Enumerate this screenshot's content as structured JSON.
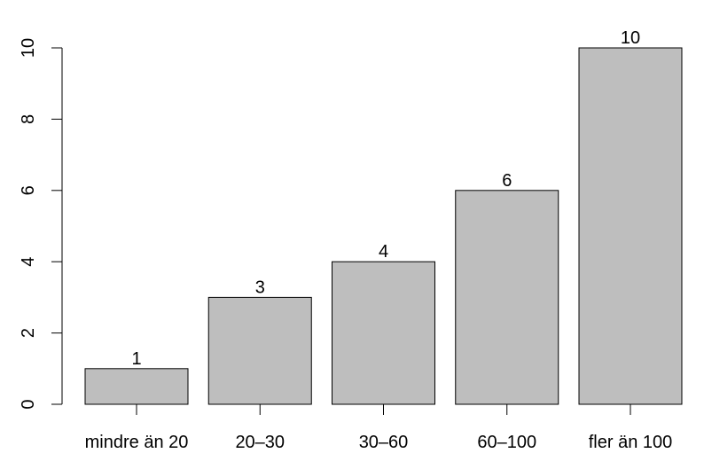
{
  "chart_data": {
    "type": "bar",
    "categories": [
      "mindre än 20",
      "20–30",
      "30–60",
      "60–100",
      "fler än 100"
    ],
    "values": [
      1,
      3,
      4,
      6,
      10
    ],
    "color": "#bebebe",
    "ylim": [
      0,
      10
    ],
    "yticks": [
      0,
      2,
      4,
      6,
      8,
      10
    ],
    "grid": false
  }
}
